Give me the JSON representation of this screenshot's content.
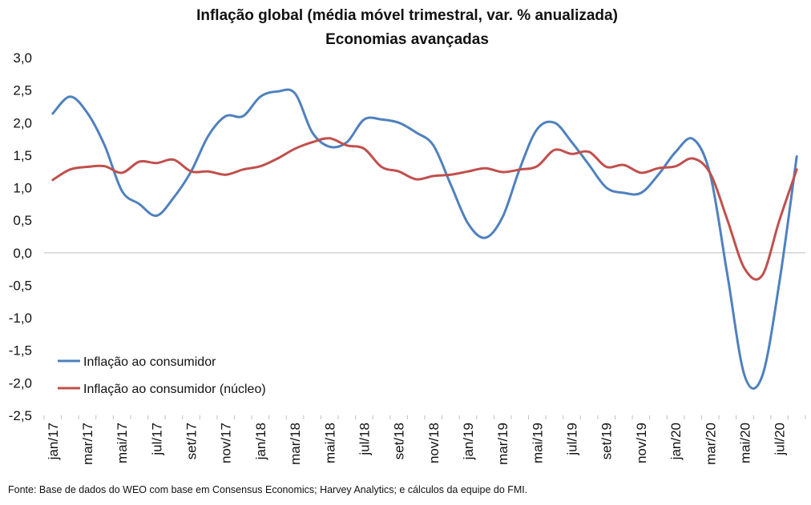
{
  "chart_data": {
    "type": "line",
    "title": "Inflação global (média móvel trimestral, var. % anualizada)",
    "subtitle": "Economias avançadas",
    "xlabel": "",
    "ylabel": "",
    "ylim": [
      -2.5,
      3.0
    ],
    "yticks": [
      "3,0",
      "2,5",
      "2,0",
      "1,5",
      "1,0",
      "0,5",
      "0,0",
      "-0,5",
      "-1,0",
      "-1,5",
      "-2,0",
      "-2,5"
    ],
    "x": [
      "jan/17",
      "fev/17",
      "mar/17",
      "abr/17",
      "mai/17",
      "jun/17",
      "jul/17",
      "ago/17",
      "set/17",
      "out/17",
      "nov/17",
      "dez/17",
      "jan/18",
      "fev/18",
      "mar/18",
      "abr/18",
      "mai/18",
      "jun/18",
      "jul/18",
      "ago/18",
      "set/18",
      "out/18",
      "nov/18",
      "dez/18",
      "jan/19",
      "fev/19",
      "mar/19",
      "abr/19",
      "mai/19",
      "jun/19",
      "jul/19",
      "ago/19",
      "set/19",
      "out/19",
      "nov/19",
      "dez/19",
      "jan/20",
      "fev/20",
      "mar/20",
      "abr/20",
      "mai/20",
      "jun/20",
      "jul/20",
      "ago/20"
    ],
    "xtick_labels": [
      "jan/17",
      "mar/17",
      "mai/17",
      "jul/17",
      "set/17",
      "nov/17",
      "jan/18",
      "mar/18",
      "mai/18",
      "jul/18",
      "set/18",
      "nov/18",
      "jan/19",
      "mar/19",
      "mai/19",
      "jul/19",
      "set/19",
      "nov/19",
      "jan/20",
      "mar/20",
      "mai/20",
      "jul/20"
    ],
    "grid": false,
    "legend_position": "bottom-left",
    "series": [
      {
        "name": "Inflação ao consumidor",
        "color": "#4F81BD",
        "values": [
          2.14,
          2.4,
          2.15,
          1.65,
          0.95,
          0.75,
          0.57,
          0.85,
          1.25,
          1.8,
          2.1,
          2.1,
          2.4,
          2.48,
          2.45,
          1.85,
          1.63,
          1.7,
          2.05,
          2.05,
          2.0,
          1.85,
          1.65,
          1.05,
          0.45,
          0.23,
          0.55,
          1.3,
          1.9,
          2.0,
          1.7,
          1.35,
          1.0,
          0.92,
          0.92,
          1.2,
          1.55,
          1.75,
          1.2,
          -0.35,
          -1.9,
          -1.9,
          -0.45,
          1.48
        ]
      },
      {
        "name": "Inflação ao consumidor (núcleo)",
        "color": "#C0504D",
        "values": [
          1.12,
          1.28,
          1.32,
          1.33,
          1.23,
          1.4,
          1.38,
          1.43,
          1.25,
          1.25,
          1.2,
          1.28,
          1.33,
          1.45,
          1.6,
          1.7,
          1.76,
          1.65,
          1.6,
          1.32,
          1.25,
          1.13,
          1.18,
          1.2,
          1.25,
          1.3,
          1.24,
          1.28,
          1.33,
          1.58,
          1.52,
          1.55,
          1.32,
          1.35,
          1.23,
          1.3,
          1.33,
          1.45,
          1.22,
          0.5,
          -0.25,
          -0.35,
          0.5,
          1.28
        ]
      }
    ],
    "source": "Fonte: Base de dados do WEO com base em Consensus Economics; Harvey Analytics; e cálculos da equipe do FMI."
  }
}
